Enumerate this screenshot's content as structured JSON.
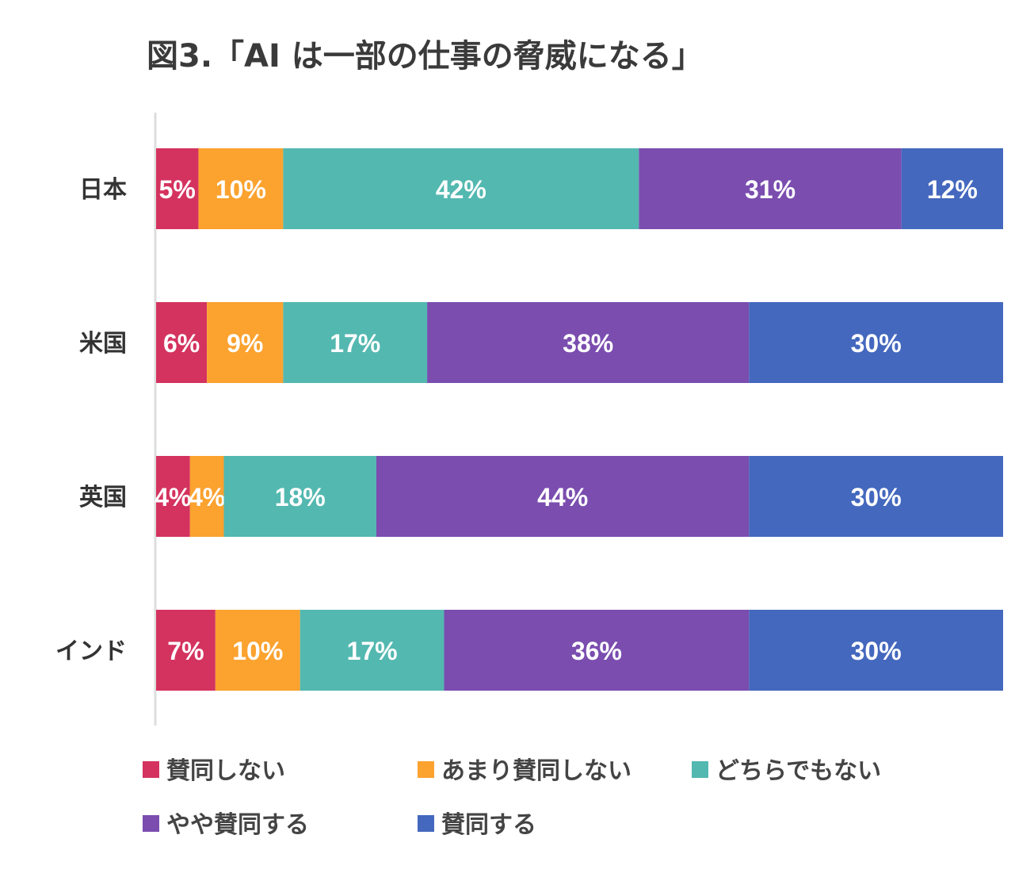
{
  "chart_data": {
    "type": "bar",
    "orientation": "horizontal",
    "stacked": true,
    "title": "図3.「AI は一部の仕事の脅威になる」",
    "categories": [
      "日本",
      "米国",
      "英国",
      "インド"
    ],
    "xlim": [
      0,
      100
    ],
    "unit": "%",
    "grid": false,
    "legend_position": "bottom",
    "series": [
      {
        "name": "賛同しない",
        "color": "#D4335F",
        "values": [
          5,
          6,
          4,
          7
        ]
      },
      {
        "name": "あまり賛同しない",
        "color": "#FBA22F",
        "values": [
          10,
          9,
          4,
          10
        ]
      },
      {
        "name": "どちらでもない",
        "color": "#53B8B0",
        "values": [
          42,
          17,
          18,
          17
        ]
      },
      {
        "name": "やや賛同する",
        "color": "#7A4DAF",
        "values": [
          31,
          38,
          44,
          36
        ]
      },
      {
        "name": "賛同する",
        "color": "#4468BE",
        "values": [
          12,
          30,
          30,
          30
        ]
      }
    ]
  }
}
